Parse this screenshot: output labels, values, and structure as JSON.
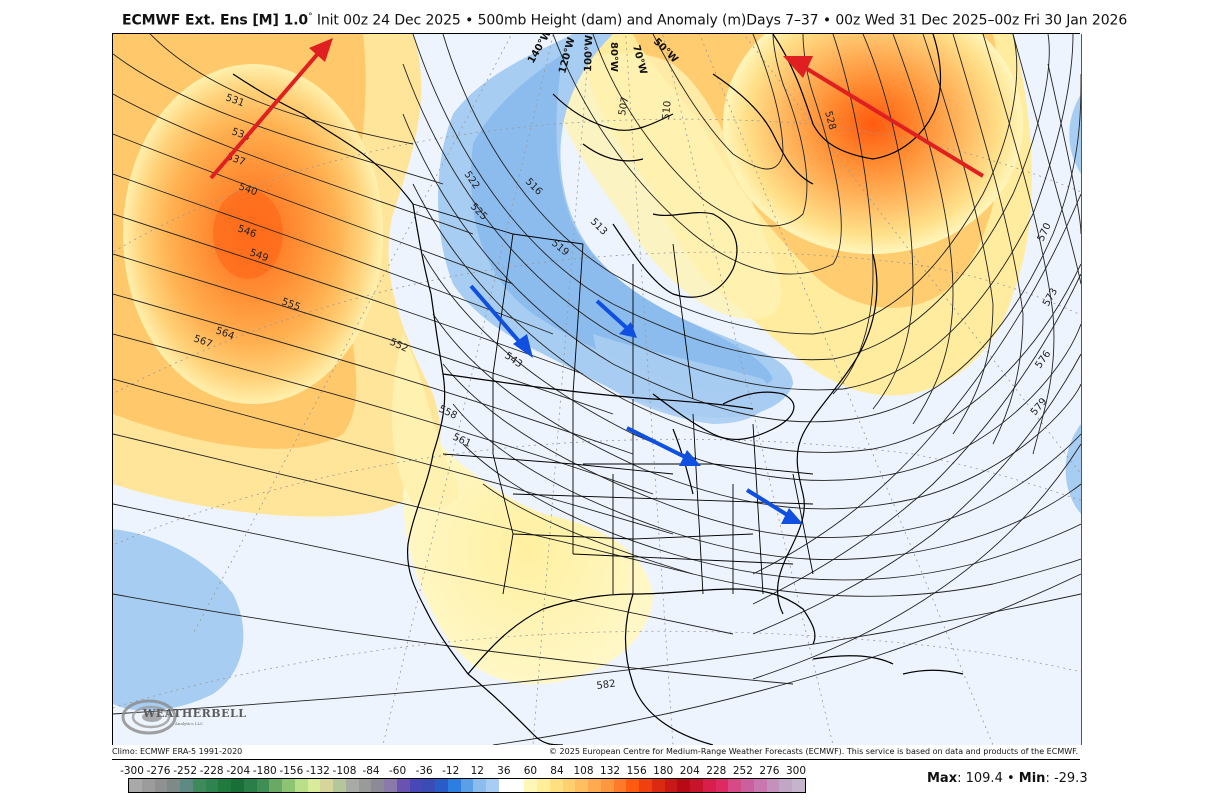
{
  "header": {
    "model_name": "ECMWF Ext. Ens [M] 1.0",
    "degree_symbol": "°",
    "init_text": " Init 00z 24 Dec 2025 • 500mb Height (dam) and Anomaly (m)Days 7–37 • 00z Wed 31 Dec 2025–00z Fri 30 Jan 2026"
  },
  "map": {
    "projection": "polar stereographic, North America",
    "longitude_labels": [
      "140°W",
      "120°W",
      "100°W",
      "80°W",
      "70°W",
      "50°W"
    ],
    "height_contour_labels": [
      "531",
      "534",
      "537",
      "540",
      "546",
      "549",
      "555",
      "564",
      "567",
      "552",
      "543",
      "558",
      "561",
      "522",
      "525",
      "516",
      "519",
      "513",
      "507",
      "510",
      "528",
      "570",
      "573",
      "576",
      "579",
      "582"
    ],
    "annotations": {
      "red_arrows": 2,
      "blue_arrows": 4
    },
    "logo_text": "WEATHERBELL",
    "logo_subtext": "Analytics LLC"
  },
  "footer": {
    "climo_note": "Climo: ECMWF ERA-5 1991-2020",
    "copyright": "© 2025 European Centre for Medium-Range Weather Forecasts (ECMWF). This service is based on data and products of the ECMWF."
  },
  "colorbar": {
    "tick_labels": [
      "-300",
      "-276",
      "-252",
      "-228",
      "-204",
      "-180",
      "-156",
      "-132",
      "-108",
      "-84",
      "-60",
      "-36",
      "-12",
      "12",
      "36",
      "60",
      "84",
      "108",
      "132",
      "156",
      "180",
      "204",
      "228",
      "252",
      "276",
      "300"
    ],
    "colors": [
      "#a9a9a9",
      "#9c9c9c",
      "#8f9090",
      "#7d8a88",
      "#5f8a84",
      "#3f8a5a",
      "#2f8350",
      "#1f7a3e",
      "#1a6f38",
      "#2a7f48",
      "#3f8e55",
      "#6aa866",
      "#8cc474",
      "#b8e08a",
      "#d9ec9c",
      "#d6d69c",
      "#b4c69a",
      "#a8aaa6",
      "#9a9a9a",
      "#8c8a94",
      "#8a7aaa",
      "#6a52b0",
      "#4a48b8",
      "#3c4cb6",
      "#2a5cc8",
      "#2c7fe0",
      "#5a9fe8",
      "#8cbcee",
      "#a8cdf2",
      "#ffffff",
      "#ffffff",
      "#fff7b8",
      "#ffee9a",
      "#ffe080",
      "#ffd070",
      "#ffbe60",
      "#ffaa50",
      "#ff9640",
      "#ff7a2a",
      "#ff5a10",
      "#f04010",
      "#dc2a10",
      "#c81818",
      "#b80a14",
      "#c8142a",
      "#d81e4a",
      "#de2a62",
      "#d84a86",
      "#cc609e",
      "#c878ae",
      "#c490bc",
      "#c2a6c6",
      "#c4b4cc"
    ]
  },
  "stats": {
    "max_label": "Max",
    "max_value": ": 109.4 • ",
    "min_label": "Min",
    "min_value": ": -29.3"
  }
}
